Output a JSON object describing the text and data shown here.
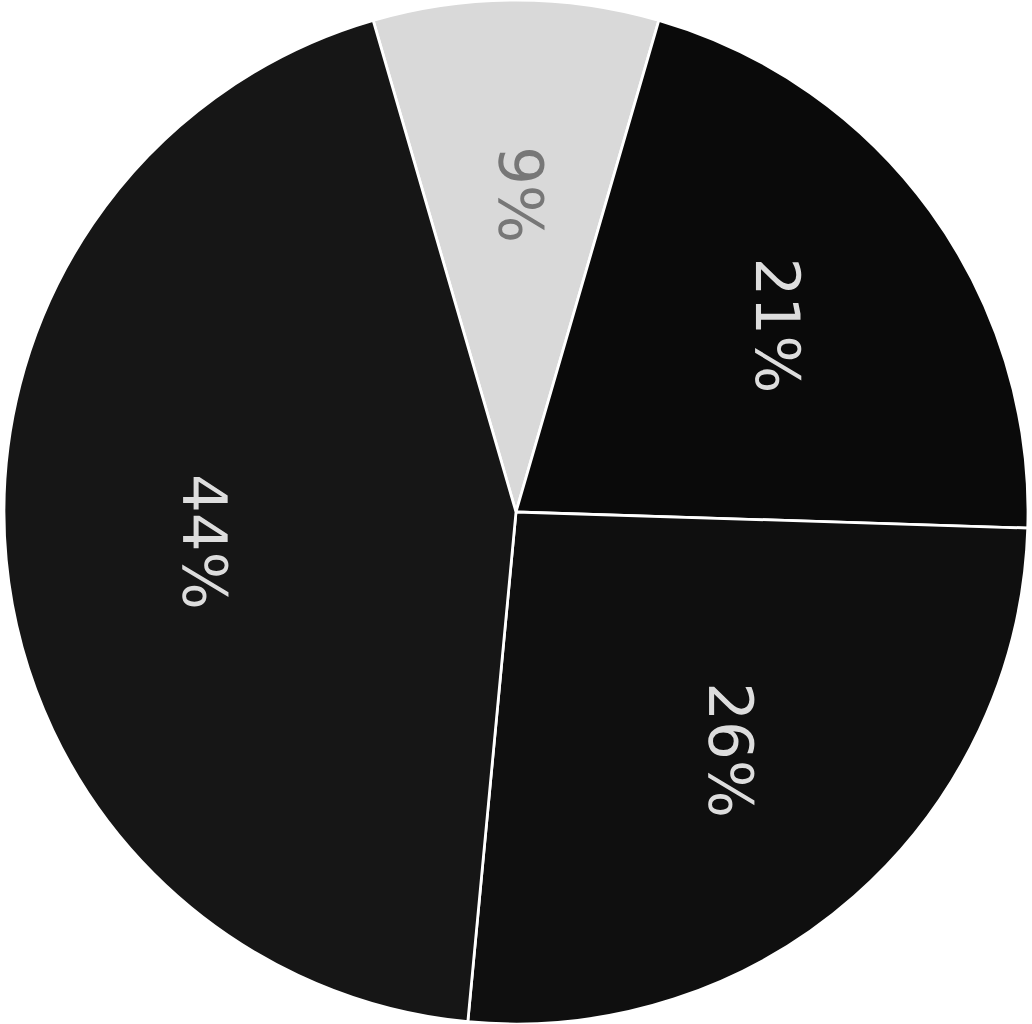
{
  "chart_data": {
    "type": "pie",
    "categories": [
      null,
      null,
      null,
      null
    ],
    "values": [
      9,
      21,
      26,
      44
    ],
    "colors": [
      "#d9d9d9",
      "#0a0a0a",
      "#0f0f0f",
      "#161616"
    ],
    "value_labels": [
      "9%",
      "21%",
      "26%",
      "44%"
    ]
  }
}
